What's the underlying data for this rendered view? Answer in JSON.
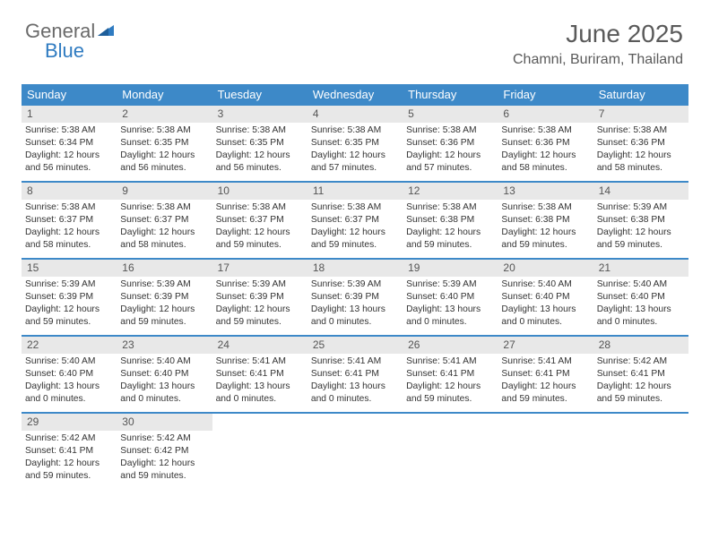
{
  "logo": {
    "text1": "General",
    "text2": "Blue"
  },
  "title": "June 2025",
  "subtitle": "Chamni, Buriram, Thailand",
  "colors": {
    "header_bg": "#3d89c8",
    "header_text": "#ffffff",
    "daynum_bg": "#e8e8e8",
    "body_text": "#333333",
    "border": "#3d89c8"
  },
  "dayHeaders": [
    "Sunday",
    "Monday",
    "Tuesday",
    "Wednesday",
    "Thursday",
    "Friday",
    "Saturday"
  ],
  "weeks": [
    [
      {
        "num": "1",
        "sunrise": "5:38 AM",
        "sunset": "6:34 PM",
        "day_h": "12",
        "day_m": "56"
      },
      {
        "num": "2",
        "sunrise": "5:38 AM",
        "sunset": "6:35 PM",
        "day_h": "12",
        "day_m": "56"
      },
      {
        "num": "3",
        "sunrise": "5:38 AM",
        "sunset": "6:35 PM",
        "day_h": "12",
        "day_m": "56"
      },
      {
        "num": "4",
        "sunrise": "5:38 AM",
        "sunset": "6:35 PM",
        "day_h": "12",
        "day_m": "57"
      },
      {
        "num": "5",
        "sunrise": "5:38 AM",
        "sunset": "6:36 PM",
        "day_h": "12",
        "day_m": "57"
      },
      {
        "num": "6",
        "sunrise": "5:38 AM",
        "sunset": "6:36 PM",
        "day_h": "12",
        "day_m": "58"
      },
      {
        "num": "7",
        "sunrise": "5:38 AM",
        "sunset": "6:36 PM",
        "day_h": "12",
        "day_m": "58"
      }
    ],
    [
      {
        "num": "8",
        "sunrise": "5:38 AM",
        "sunset": "6:37 PM",
        "day_h": "12",
        "day_m": "58"
      },
      {
        "num": "9",
        "sunrise": "5:38 AM",
        "sunset": "6:37 PM",
        "day_h": "12",
        "day_m": "58"
      },
      {
        "num": "10",
        "sunrise": "5:38 AM",
        "sunset": "6:37 PM",
        "day_h": "12",
        "day_m": "59"
      },
      {
        "num": "11",
        "sunrise": "5:38 AM",
        "sunset": "6:37 PM",
        "day_h": "12",
        "day_m": "59"
      },
      {
        "num": "12",
        "sunrise": "5:38 AM",
        "sunset": "6:38 PM",
        "day_h": "12",
        "day_m": "59"
      },
      {
        "num": "13",
        "sunrise": "5:38 AM",
        "sunset": "6:38 PM",
        "day_h": "12",
        "day_m": "59"
      },
      {
        "num": "14",
        "sunrise": "5:39 AM",
        "sunset": "6:38 PM",
        "day_h": "12",
        "day_m": "59"
      }
    ],
    [
      {
        "num": "15",
        "sunrise": "5:39 AM",
        "sunset": "6:39 PM",
        "day_h": "12",
        "day_m": "59"
      },
      {
        "num": "16",
        "sunrise": "5:39 AM",
        "sunset": "6:39 PM",
        "day_h": "12",
        "day_m": "59"
      },
      {
        "num": "17",
        "sunrise": "5:39 AM",
        "sunset": "6:39 PM",
        "day_h": "12",
        "day_m": "59"
      },
      {
        "num": "18",
        "sunrise": "5:39 AM",
        "sunset": "6:39 PM",
        "day_h": "13",
        "day_m": "0"
      },
      {
        "num": "19",
        "sunrise": "5:39 AM",
        "sunset": "6:40 PM",
        "day_h": "13",
        "day_m": "0"
      },
      {
        "num": "20",
        "sunrise": "5:40 AM",
        "sunset": "6:40 PM",
        "day_h": "13",
        "day_m": "0"
      },
      {
        "num": "21",
        "sunrise": "5:40 AM",
        "sunset": "6:40 PM",
        "day_h": "13",
        "day_m": "0"
      }
    ],
    [
      {
        "num": "22",
        "sunrise": "5:40 AM",
        "sunset": "6:40 PM",
        "day_h": "13",
        "day_m": "0"
      },
      {
        "num": "23",
        "sunrise": "5:40 AM",
        "sunset": "6:40 PM",
        "day_h": "13",
        "day_m": "0"
      },
      {
        "num": "24",
        "sunrise": "5:41 AM",
        "sunset": "6:41 PM",
        "day_h": "13",
        "day_m": "0"
      },
      {
        "num": "25",
        "sunrise": "5:41 AM",
        "sunset": "6:41 PM",
        "day_h": "13",
        "day_m": "0"
      },
      {
        "num": "26",
        "sunrise": "5:41 AM",
        "sunset": "6:41 PM",
        "day_h": "12",
        "day_m": "59"
      },
      {
        "num": "27",
        "sunrise": "5:41 AM",
        "sunset": "6:41 PM",
        "day_h": "12",
        "day_m": "59"
      },
      {
        "num": "28",
        "sunrise": "5:42 AM",
        "sunset": "6:41 PM",
        "day_h": "12",
        "day_m": "59"
      }
    ],
    [
      {
        "num": "29",
        "sunrise": "5:42 AM",
        "sunset": "6:41 PM",
        "day_h": "12",
        "day_m": "59"
      },
      {
        "num": "30",
        "sunrise": "5:42 AM",
        "sunset": "6:42 PM",
        "day_h": "12",
        "day_m": "59"
      },
      null,
      null,
      null,
      null,
      null
    ]
  ]
}
